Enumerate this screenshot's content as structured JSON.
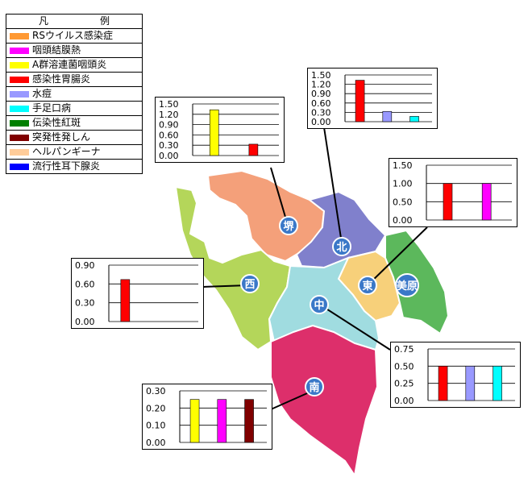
{
  "legend": {
    "title": "凡　例",
    "items": [
      {
        "label": "RSウイルス感染症",
        "color": "#ff9933"
      },
      {
        "label": "咽頭結膜熱",
        "color": "#ff00ff"
      },
      {
        "label": "A群溶連菌咽頭炎",
        "color": "#ffff00"
      },
      {
        "label": "感染性胃腸炎",
        "color": "#ff0000"
      },
      {
        "label": "水痘",
        "color": "#9999ff"
      },
      {
        "label": "手足口病",
        "color": "#00ffff"
      },
      {
        "label": "伝染性紅斑",
        "color": "#008000"
      },
      {
        "label": "突発性発しん",
        "color": "#800000"
      },
      {
        "label": "ヘルパンギーナ",
        "color": "#ffcc99"
      },
      {
        "label": "流行性耳下腺炎",
        "color": "#0000ff"
      }
    ]
  },
  "districts": [
    {
      "name": "堺",
      "color": "#f4a07a"
    },
    {
      "name": "北",
      "color": "#8080cc"
    },
    {
      "name": "東",
      "color": "#f7d07a"
    },
    {
      "name": "美原",
      "color": "#5cb85c"
    },
    {
      "name": "西",
      "color": "#b4d65a"
    },
    {
      "name": "中",
      "color": "#a0dce0"
    },
    {
      "name": "南",
      "color": "#dd2f6b"
    }
  ],
  "chart_data": [
    {
      "type": "bar",
      "district": "堺",
      "yticks": [
        "1.50",
        "1.20",
        "0.90",
        "0.60",
        "0.30",
        "0.00"
      ],
      "ylim": [
        0,
        1.5
      ],
      "values": [
        1.33,
        0.33
      ],
      "colors": [
        "#ffff00",
        "#ff0000"
      ]
    },
    {
      "type": "bar",
      "district": "北",
      "yticks": [
        "1.50",
        "1.20",
        "0.90",
        "0.60",
        "0.30",
        "0.00"
      ],
      "ylim": [
        0,
        1.5
      ],
      "values": [
        1.33,
        0.33,
        0.17
      ],
      "colors": [
        "#ff0000",
        "#9999ff",
        "#00ffff"
      ]
    },
    {
      "type": "bar",
      "district": "東",
      "yticks": [
        "1.50",
        "1.00",
        "0.50",
        "0.00"
      ],
      "ylim": [
        0,
        1.5
      ],
      "values": [
        1.0,
        1.0
      ],
      "colors": [
        "#ff0000",
        "#ff00ff"
      ]
    },
    {
      "type": "bar",
      "district": "西",
      "yticks": [
        "0.90",
        "0.60",
        "0.30",
        "0.00"
      ],
      "ylim": [
        0,
        0.9
      ],
      "values": [
        0.67
      ],
      "colors": [
        "#ff0000"
      ]
    },
    {
      "type": "bar",
      "district": "中",
      "yticks": [
        "0.75",
        "0.50",
        "0.25",
        "0.00"
      ],
      "ylim": [
        0,
        0.75
      ],
      "values": [
        0.5,
        0.5,
        0.5
      ],
      "colors": [
        "#ff0000",
        "#9999ff",
        "#00ffff"
      ]
    },
    {
      "type": "bar",
      "district": "南",
      "yticks": [
        "0.30",
        "0.20",
        "0.10",
        "0.00"
      ],
      "ylim": [
        0,
        0.3
      ],
      "values": [
        0.25,
        0.25,
        0.25
      ],
      "colors": [
        "#ffff00",
        "#ff00ff",
        "#800000"
      ]
    }
  ]
}
